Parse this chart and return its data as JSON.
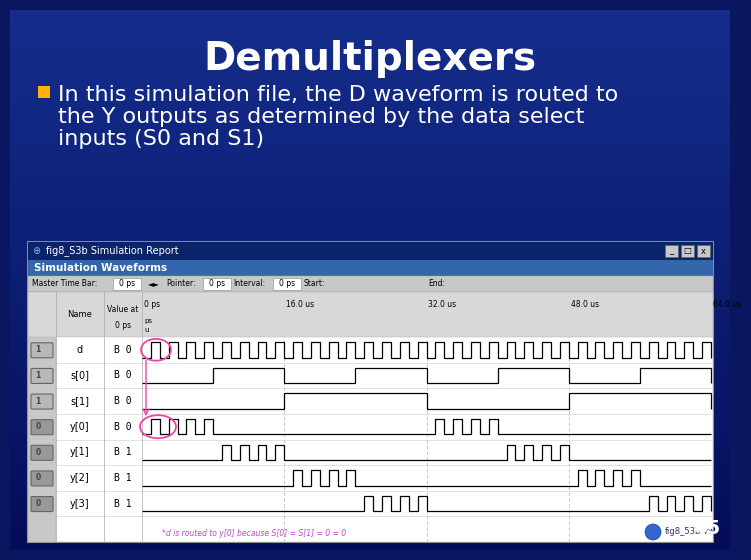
{
  "title": "Demultiplexers",
  "bullet_text_line1": "In this simulation file, the D waveform is routed to",
  "bullet_text_line2": "the Y outputs as determined by the data select",
  "bullet_text_line3": "inputs (S0 and S1)",
  "bullet_color": "#FFB300",
  "bg_color": "#0A1660",
  "title_color": "#FFFFFF",
  "text_color": "#FFFFFF",
  "title_fontsize": 28,
  "body_fontsize": 16,
  "slide_number": "45",
  "window_title": "fig8_S3b Simulation Report",
  "window_subtitle": "Simulation Waveforms",
  "toolbar_text": "Master Time Bar:    0 ps    ◄►  Pointer:    0 ps    Interval:    0 ps    Start:                End:",
  "time_labels": [
    "0 ps",
    "16.0 us",
    "32.0 us",
    "48.0 us",
    "64.0 us"
  ],
  "signal_names": [
    "d",
    "s[0]",
    "s[1]",
    "y[0]",
    "y[1]",
    "y[2]",
    "y[3]"
  ],
  "signal_values": [
    "B 0",
    "B 0",
    "B 0",
    "B 0",
    "B 1",
    "B 1",
    "B 1"
  ],
  "annotation_text": "*d is routed to y[0] because S[0] = S[1] = 0 = 0",
  "logo_text": "fig8_53b.vwf"
}
